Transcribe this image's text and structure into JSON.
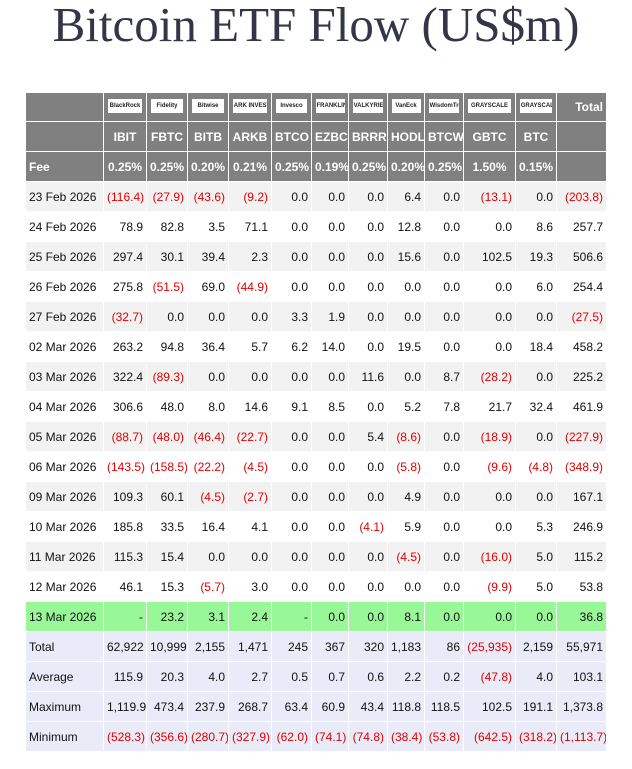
{
  "header": {
    "title": "Bitcoin ETF Flow (US$m)"
  },
  "table": {
    "logos": [
      "BlackRock",
      "Fidelity",
      "Bitwise",
      "ARK INVEST",
      "Invesco",
      "FRANKLIN",
      "VALKYRIE",
      "VanEck",
      "WisdomTree",
      "GRAYSCALE",
      "GRAYSCALE"
    ],
    "total_label": "Total",
    "tickers": [
      "IBIT",
      "FBTC",
      "BITB",
      "ARKB",
      "BTCO",
      "EZBC",
      "BRRR",
      "HODL",
      "BTCW",
      "GBTC",
      "BTC"
    ],
    "fee_label": "Fee",
    "fees": [
      "0.25%",
      "0.25%",
      "0.20%",
      "0.21%",
      "0.25%",
      "0.19%",
      "0.25%",
      "0.20%",
      "0.25%",
      "1.50%",
      "0.15%"
    ],
    "rows": [
      {
        "date": "23 Feb 2026",
        "values": [
          "(116.4)",
          "(27.9)",
          "(43.6)",
          "(9.2)",
          "0.0",
          "0.0",
          "0.0",
          "6.4",
          "0.0",
          "(13.1)",
          "0.0",
          "(203.8)"
        ]
      },
      {
        "date": "24 Feb 2026",
        "values": [
          "78.9",
          "82.8",
          "3.5",
          "71.1",
          "0.0",
          "0.0",
          "0.0",
          "12.8",
          "0.0",
          "0.0",
          "8.6",
          "257.7"
        ]
      },
      {
        "date": "25 Feb 2026",
        "values": [
          "297.4",
          "30.1",
          "39.4",
          "2.3",
          "0.0",
          "0.0",
          "0.0",
          "15.6",
          "0.0",
          "102.5",
          "19.3",
          "506.6"
        ]
      },
      {
        "date": "26 Feb 2026",
        "values": [
          "275.8",
          "(51.5)",
          "69.0",
          "(44.9)",
          "0.0",
          "0.0",
          "0.0",
          "0.0",
          "0.0",
          "0.0",
          "6.0",
          "254.4"
        ]
      },
      {
        "date": "27 Feb 2026",
        "values": [
          "(32.7)",
          "0.0",
          "0.0",
          "0.0",
          "3.3",
          "1.9",
          "0.0",
          "0.0",
          "0.0",
          "0.0",
          "0.0",
          "(27.5)"
        ]
      },
      {
        "date": "02 Mar 2026",
        "values": [
          "263.2",
          "94.8",
          "36.4",
          "5.7",
          "6.2",
          "14.0",
          "0.0",
          "19.5",
          "0.0",
          "0.0",
          "18.4",
          "458.2"
        ]
      },
      {
        "date": "03 Mar 2026",
        "values": [
          "322.4",
          "(89.3)",
          "0.0",
          "0.0",
          "0.0",
          "0.0",
          "11.6",
          "0.0",
          "8.7",
          "(28.2)",
          "0.0",
          "225.2"
        ]
      },
      {
        "date": "04 Mar 2026",
        "values": [
          "306.6",
          "48.0",
          "8.0",
          "14.6",
          "9.1",
          "8.5",
          "0.0",
          "5.2",
          "7.8",
          "21.7",
          "32.4",
          "461.9"
        ]
      },
      {
        "date": "05 Mar 2026",
        "values": [
          "(88.7)",
          "(48.0)",
          "(46.4)",
          "(22.7)",
          "0.0",
          "0.0",
          "5.4",
          "(8.6)",
          "0.0",
          "(18.9)",
          "0.0",
          "(227.9)"
        ]
      },
      {
        "date": "06 Mar 2026",
        "values": [
          "(143.5)",
          "(158.5)",
          "(22.2)",
          "(4.5)",
          "0.0",
          "0.0",
          "0.0",
          "(5.8)",
          "0.0",
          "(9.6)",
          "(4.8)",
          "(348.9)"
        ]
      },
      {
        "date": "09 Mar 2026",
        "values": [
          "109.3",
          "60.1",
          "(4.5)",
          "(2.7)",
          "0.0",
          "0.0",
          "0.0",
          "4.9",
          "0.0",
          "0.0",
          "0.0",
          "167.1"
        ]
      },
      {
        "date": "10 Mar 2026",
        "values": [
          "185.8",
          "33.5",
          "16.4",
          "4.1",
          "0.0",
          "0.0",
          "(4.1)",
          "5.9",
          "0.0",
          "0.0",
          "5.3",
          "246.9"
        ]
      },
      {
        "date": "11 Mar 2026",
        "values": [
          "115.3",
          "15.4",
          "0.0",
          "0.0",
          "0.0",
          "0.0",
          "0.0",
          "(4.5)",
          "0.0",
          "(16.0)",
          "5.0",
          "115.2"
        ]
      },
      {
        "date": "12 Mar 2026",
        "values": [
          "46.1",
          "15.3",
          "(5.7)",
          "3.0",
          "0.0",
          "0.0",
          "0.0",
          "0.0",
          "0.0",
          "(9.9)",
          "5.0",
          "53.8"
        ]
      },
      {
        "date": "13 Mar 2026",
        "values": [
          "-",
          "23.2",
          "3.1",
          "2.4",
          "-",
          "0.0",
          "0.0",
          "8.1",
          "0.0",
          "0.0",
          "0.0",
          "36.8"
        ]
      }
    ],
    "summary": [
      {
        "label": "Total",
        "values": [
          "62,922",
          "10,999",
          "2,155",
          "1,471",
          "245",
          "367",
          "320",
          "1,183",
          "86",
          "(25,935)",
          "2,159",
          "55,971"
        ]
      },
      {
        "label": "Average",
        "values": [
          "115.9",
          "20.3",
          "4.0",
          "2.7",
          "0.5",
          "0.7",
          "0.6",
          "2.2",
          "0.2",
          "(47.8)",
          "4.0",
          "103.1"
        ]
      },
      {
        "label": "Maximum",
        "values": [
          "1,119.9",
          "473.4",
          "237.9",
          "268.7",
          "63.4",
          "60.9",
          "43.4",
          "118.8",
          "118.5",
          "102.5",
          "191.1",
          "1,373.8"
        ]
      },
      {
        "label": "Minimum",
        "values": [
          "(528.3)",
          "(356.6)",
          "(280.7)",
          "(327.9)",
          "(62.0)",
          "(74.1)",
          "(74.8)",
          "(38.4)",
          "(53.8)",
          "(642.5)",
          "(318.2)",
          "(1,113.7)"
        ]
      }
    ]
  }
}
